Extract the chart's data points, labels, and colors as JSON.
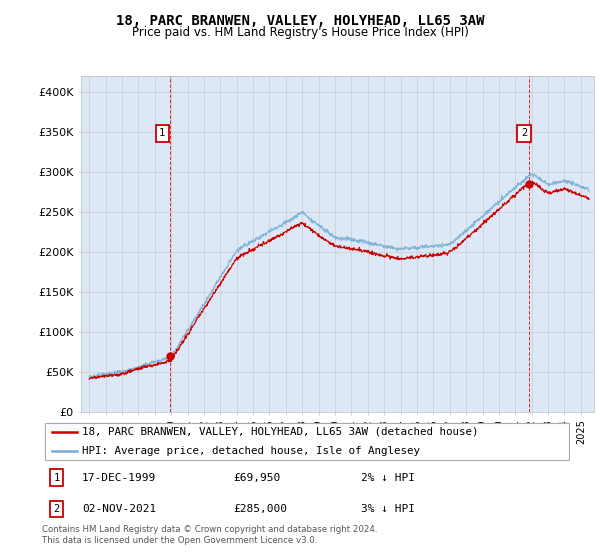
{
  "title": "18, PARC BRANWEN, VALLEY, HOLYHEAD, LL65 3AW",
  "subtitle": "Price paid vs. HM Land Registry's House Price Index (HPI)",
  "hpi_color": "#7aaed6",
  "price_color": "#cc0000",
  "grid_color": "#cccccc",
  "plot_bg": "#dce8f5",
  "legend_entry1": "18, PARC BRANWEN, VALLEY, HOLYHEAD, LL65 3AW (detached house)",
  "legend_entry2": "HPI: Average price, detached house, Isle of Anglesey",
  "annotation1_date": "17-DEC-1999",
  "annotation1_price": "£69,950",
  "annotation1_hpi": "2% ↓ HPI",
  "annotation1_year": 1999.96,
  "annotation1_value": 69950,
  "annotation2_date": "02-NOV-2021",
  "annotation2_price": "£285,000",
  "annotation2_hpi": "3% ↓ HPI",
  "annotation2_year": 2021.84,
  "annotation2_value": 285000,
  "footer": "Contains HM Land Registry data © Crown copyright and database right 2024.\nThis data is licensed under the Open Government Licence v3.0.",
  "xmin": 1994.5,
  "xmax": 2025.8,
  "ylim": [
    0,
    420000
  ],
  "yticks": [
    0,
    50000,
    100000,
    150000,
    200000,
    250000,
    300000,
    350000,
    400000
  ],
  "ytick_labels": [
    "£0",
    "£50K",
    "£100K",
    "£150K",
    "£200K",
    "£250K",
    "£300K",
    "£350K",
    "£400K"
  ]
}
